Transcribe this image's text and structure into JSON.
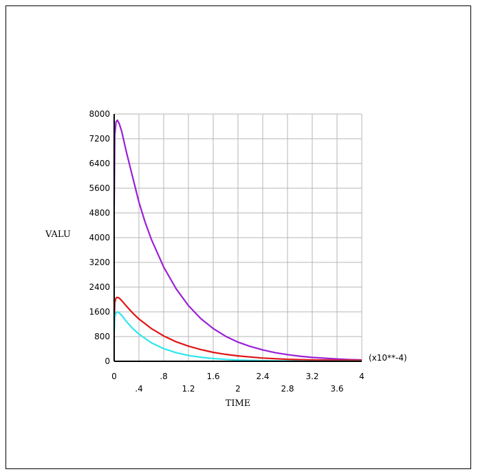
{
  "chart_data": {
    "type": "line",
    "xlabel": "TIME",
    "ylabel": "VALU",
    "x_multiplier_label": "(x10**-4)",
    "xlim": [
      0,
      4
    ],
    "ylim": [
      0,
      8000
    ],
    "x_ticks": [
      0,
      0.4,
      0.8,
      1.2,
      1.6,
      2,
      2.4,
      2.8,
      3.2,
      3.6,
      4
    ],
    "x_tick_labels": [
      "0",
      ".4",
      ".8",
      "1.2",
      "1.6",
      "2",
      "2.4",
      "2.8",
      "3.2",
      "3.6",
      "4"
    ],
    "y_ticks": [
      0,
      800,
      1600,
      2400,
      3200,
      4000,
      4800,
      5600,
      6400,
      7200,
      8000
    ],
    "y_tick_labels": [
      "0",
      "800",
      "1600",
      "2400",
      "3200",
      "4000",
      "4800",
      "5600",
      "6400",
      "7200",
      "8000"
    ],
    "grid": true,
    "series": [
      {
        "color": "#9a1fd6",
        "x": [
          0,
          0.01,
          0.03,
          0.05,
          0.08,
          0.12,
          0.2,
          0.3,
          0.4,
          0.5,
          0.6,
          0.8,
          1.0,
          1.2,
          1.4,
          1.6,
          1.8,
          2.0,
          2.2,
          2.4,
          2.6,
          2.8,
          3.0,
          3.2,
          3.4,
          3.6,
          3.8,
          4.0
        ],
        "y": [
          5000,
          7300,
          7750,
          7800,
          7700,
          7450,
          6750,
          5950,
          5150,
          4500,
          3950,
          3050,
          2350,
          1800,
          1380,
          1060,
          810,
          620,
          480,
          370,
          280,
          215,
          165,
          125,
          100,
          75,
          55,
          45
        ]
      },
      {
        "color": "#e01414",
        "x": [
          0,
          0.01,
          0.03,
          0.05,
          0.08,
          0.12,
          0.2,
          0.3,
          0.4,
          0.6,
          0.8,
          1.0,
          1.2,
          1.4,
          1.6,
          1.8,
          2.0,
          2.4,
          2.8,
          3.2,
          3.6,
          4.0
        ],
        "y": [
          1350,
          1900,
          2050,
          2070,
          2050,
          1970,
          1780,
          1560,
          1370,
          1060,
          820,
          630,
          490,
          380,
          290,
          225,
          175,
          105,
          65,
          45,
          35,
          30
        ]
      },
      {
        "color": "#2ee6ee",
        "x": [
          0,
          0.01,
          0.03,
          0.05,
          0.08,
          0.12,
          0.2,
          0.3,
          0.4,
          0.6,
          0.8,
          1.0,
          1.2,
          1.4,
          1.6,
          1.8,
          2.0,
          2.4,
          2.8,
          3.2,
          3.6,
          4.0
        ],
        "y": [
          900,
          1400,
          1570,
          1600,
          1570,
          1490,
          1280,
          1060,
          880,
          600,
          410,
          280,
          190,
          130,
          88,
          60,
          40,
          20,
          10,
          5,
          3,
          2
        ]
      }
    ]
  }
}
